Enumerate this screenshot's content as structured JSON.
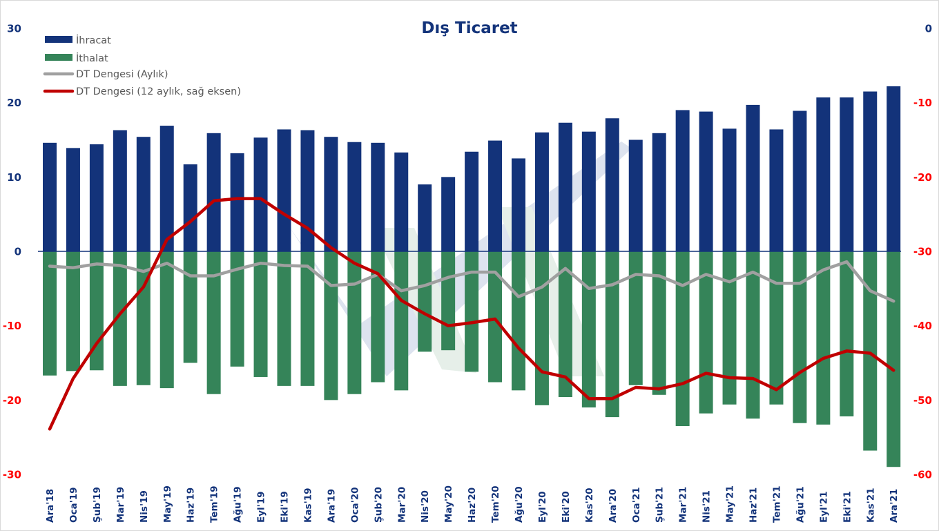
{
  "chart_data": {
    "type": "bar",
    "title": "Dış Ticaret",
    "xlabel": "",
    "ylabel": "",
    "ylim": [
      -30,
      30
    ],
    "y2lim": [
      -60,
      0
    ],
    "left_ticks": [
      30,
      20,
      10,
      0,
      -10,
      -20,
      -30
    ],
    "right_ticks": [
      0,
      -10,
      -20,
      -30,
      -40,
      -50,
      -60
    ],
    "grid": false,
    "legend_position": "top-left",
    "categories": [
      "Ara'18",
      "Oca'19",
      "Şub'19",
      "Mar'19",
      "Nis'19",
      "May'19",
      "Haz'19",
      "Tem'19",
      "Ağu'19",
      "Eyl'19",
      "Eki'19",
      "Kas'19",
      "Ara'19",
      "Oca'20",
      "Şub'20",
      "Mar'20",
      "Nis'20",
      "May'20",
      "Haz'20",
      "Tem'20",
      "Ağu'20",
      "Eyl'20",
      "Eki'20",
      "Kas'20",
      "Ara'20",
      "Oca'21",
      "Şub'21",
      "Mar'21",
      "Nis'21",
      "May'21",
      "Haz'21",
      "Tem'21",
      "Ağu'21",
      "Eyl'21",
      "Eki'21",
      "Kas'21",
      "Ara'21"
    ],
    "series": [
      {
        "name": "İhracat",
        "type": "bar",
        "axis": "left",
        "color": "#13337a",
        "values": [
          14.6,
          13.9,
          14.4,
          16.3,
          15.4,
          16.9,
          11.7,
          15.9,
          13.2,
          15.3,
          16.4,
          16.3,
          15.4,
          14.7,
          14.6,
          13.3,
          9.0,
          10.0,
          13.4,
          14.9,
          12.5,
          16.0,
          17.3,
          16.1,
          17.9,
          15.0,
          15.9,
          19.0,
          18.8,
          16.5,
          19.7,
          16.4,
          18.9,
          20.7,
          20.7,
          21.5,
          22.2
        ]
      },
      {
        "name": "İthalat",
        "type": "bar",
        "axis": "left",
        "color": "#358459",
        "values": [
          -16.7,
          -16.1,
          -16.0,
          -18.1,
          -18.0,
          -18.4,
          -15.0,
          -19.2,
          -15.5,
          -16.9,
          -18.1,
          -18.1,
          -20.0,
          -19.2,
          -17.6,
          -18.7,
          -13.5,
          -13.3,
          -16.2,
          -17.6,
          -18.7,
          -20.7,
          -19.6,
          -21.0,
          -22.3,
          -18.0,
          -19.3,
          -23.5,
          -21.8,
          -20.6,
          -22.5,
          -20.6,
          -23.1,
          -23.3,
          -22.2,
          -26.8,
          -29.0
        ]
      },
      {
        "name": "DT Dengesi (Aylık)",
        "type": "line",
        "axis": "left",
        "color": "#a0a0a0",
        "values": [
          -2.0,
          -2.2,
          -1.7,
          -1.9,
          -2.7,
          -1.6,
          -3.3,
          -3.3,
          -2.4,
          -1.6,
          -1.9,
          -2.0,
          -4.6,
          -4.4,
          -3.1,
          -5.3,
          -4.6,
          -3.5,
          -2.8,
          -2.8,
          -6.1,
          -4.8,
          -2.3,
          -5.0,
          -4.5,
          -3.1,
          -3.3,
          -4.6,
          -3.1,
          -4.1,
          -2.8,
          -4.3,
          -4.3,
          -2.5,
          -1.4,
          -5.3,
          -6.7
        ]
      },
      {
        "name": "DT Dengesi (12 aylık, sağ eksen)",
        "type": "line",
        "axis": "right",
        "color": "#c00000",
        "values": [
          -53.9,
          -47.1,
          -42.4,
          -38.4,
          -34.8,
          -28.4,
          -26.0,
          -23.2,
          -22.9,
          -22.9,
          -25.0,
          -26.9,
          -29.5,
          -31.6,
          -33.0,
          -36.6,
          -38.4,
          -40.0,
          -39.6,
          -39.1,
          -43.0,
          -46.2,
          -46.9,
          -49.8,
          -49.8,
          -48.3,
          -48.5,
          -47.8,
          -46.4,
          -47.0,
          -47.1,
          -48.6,
          -46.3,
          -44.4,
          -43.4,
          -43.7,
          -46.0
        ]
      }
    ]
  },
  "colors": {
    "title": "#13337a",
    "positive_tick": "#13337a",
    "negative_tick": "#ff0000",
    "zero_line": "#13337a",
    "legend_text": "#595959"
  }
}
